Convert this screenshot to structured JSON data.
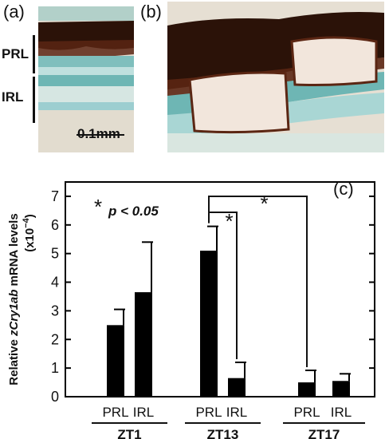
{
  "panels": {
    "a_label": "(a)",
    "b_label": "(b)",
    "c_label": "(c)"
  },
  "micrograph_a": {
    "prl_label": "PRL",
    "irl_label": "IRL",
    "scale_bar_label": "0.1mm"
  },
  "chart_data": {
    "type": "bar",
    "ylabel_prefix": "Relative ",
    "ylabel_gene": "zCry1ab",
    "ylabel_suffix": " mRNA levels",
    "ylabel_units_text": "(x10",
    "ylabel_units_exp": "−4",
    "ylabel_units_close": ")",
    "ylim": [
      0,
      7.5
    ],
    "yticks": [
      0,
      1,
      2,
      3,
      4,
      5,
      6,
      7
    ],
    "tick_labels": [
      "0",
      "1",
      "2",
      "3",
      "4",
      "5",
      "6",
      "7"
    ],
    "groups": [
      {
        "name": "ZT1",
        "bars": [
          {
            "label": "PRL",
            "value": 2.5,
            "error": 0.55
          },
          {
            "label": "IRL",
            "value": 3.65,
            "error": 1.75
          }
        ]
      },
      {
        "name": "ZT13",
        "bars": [
          {
            "label": "PRL",
            "value": 5.1,
            "error": 0.85
          },
          {
            "label": "IRL",
            "value": 0.65,
            "error": 0.55
          }
        ]
      },
      {
        "name": "ZT17",
        "bars": [
          {
            "label": "PRL",
            "value": 0.5,
            "error": 0.42
          },
          {
            "label": "IRL",
            "value": 0.55,
            "error": 0.25
          }
        ]
      }
    ],
    "significance_marker": "*",
    "significance_note": "p < 0.05",
    "grid": false
  },
  "colors": {
    "bar": "#000000",
    "axis": "#000000",
    "pigment": "#2b1208",
    "stain": "#4aa9a6",
    "tissue": "#e4dcd0"
  }
}
